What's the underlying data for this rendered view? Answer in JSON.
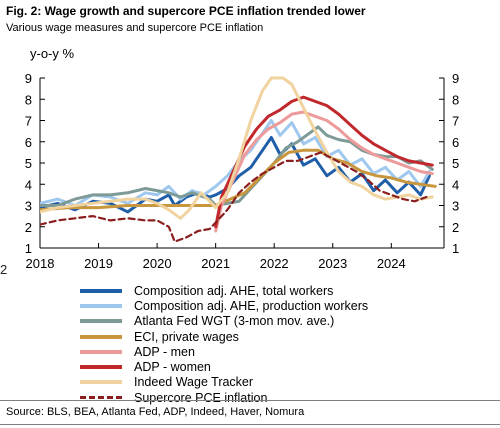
{
  "header": {
    "title": "Fig. 2: Wage growth and supercore PCE inflation trended lower",
    "subtitle": "Various wage measures and supercore PCE inflation"
  },
  "stub_text": "2",
  "footer": {
    "source": "Source: BLS, BEA, Atlanta Fed, ADP, Indeed, Haver, Nomura"
  },
  "chart_data": {
    "type": "line",
    "title": "Fig. 2: Wage growth and supercore PCE inflation trended lower",
    "subtitle": "Various wage measures and supercore PCE inflation",
    "ylabel": "y-o-y %",
    "xlabel": "",
    "xlim": [
      2018.0,
      2024.9
    ],
    "ylim": [
      1,
      9
    ],
    "x_ticks": [
      "2018",
      "2019",
      "2020",
      "2021",
      "2022",
      "2023",
      "2024"
    ],
    "y_ticks": [
      "1",
      "2",
      "3",
      "4",
      "5",
      "6",
      "7",
      "8",
      "9"
    ],
    "grid": false,
    "legend_position": "bottom",
    "series": [
      {
        "name": "Composition adj. AHE, total workers",
        "color": "#1f5ea8",
        "dash": false,
        "points": [
          [
            2018.0,
            2.9
          ],
          [
            2018.3,
            3.1
          ],
          [
            2018.6,
            2.8
          ],
          [
            2018.9,
            3.2
          ],
          [
            2019.2,
            3.1
          ],
          [
            2019.5,
            2.7
          ],
          [
            2019.8,
            3.3
          ],
          [
            2020.0,
            3.2
          ],
          [
            2020.2,
            3.5
          ],
          [
            2020.3,
            3.0
          ],
          [
            2020.5,
            3.4
          ],
          [
            2020.7,
            3.6
          ],
          [
            2020.9,
            3.4
          ],
          [
            2021.0,
            3.5
          ],
          [
            2021.2,
            3.8
          ],
          [
            2021.4,
            4.4
          ],
          [
            2021.6,
            4.8
          ],
          [
            2021.8,
            5.6
          ],
          [
            2021.95,
            6.2
          ],
          [
            2022.1,
            5.4
          ],
          [
            2022.3,
            5.9
          ],
          [
            2022.5,
            4.9
          ],
          [
            2022.7,
            5.2
          ],
          [
            2022.9,
            4.4
          ],
          [
            2023.1,
            4.8
          ],
          [
            2023.3,
            4.1
          ],
          [
            2023.5,
            4.5
          ],
          [
            2023.7,
            3.7
          ],
          [
            2023.9,
            4.2
          ],
          [
            2024.1,
            3.6
          ],
          [
            2024.3,
            4.1
          ],
          [
            2024.5,
            3.5
          ],
          [
            2024.65,
            4.4
          ]
        ]
      },
      {
        "name": "Composition adj. AHE, production workers",
        "color": "#9fc8ee",
        "dash": false,
        "points": [
          [
            2018.0,
            3.1
          ],
          [
            2018.3,
            3.3
          ],
          [
            2018.6,
            3.0
          ],
          [
            2018.9,
            3.5
          ],
          [
            2019.2,
            3.4
          ],
          [
            2019.5,
            3.1
          ],
          [
            2019.8,
            3.6
          ],
          [
            2020.0,
            3.5
          ],
          [
            2020.2,
            3.9
          ],
          [
            2020.4,
            3.3
          ],
          [
            2020.6,
            3.7
          ],
          [
            2020.8,
            3.5
          ],
          [
            2021.0,
            3.9
          ],
          [
            2021.2,
            4.4
          ],
          [
            2021.4,
            5.1
          ],
          [
            2021.6,
            5.6
          ],
          [
            2021.8,
            6.4
          ],
          [
            2021.95,
            7.0
          ],
          [
            2022.1,
            6.3
          ],
          [
            2022.3,
            6.9
          ],
          [
            2022.5,
            5.9
          ],
          [
            2022.7,
            6.2
          ],
          [
            2022.9,
            5.3
          ],
          [
            2023.1,
            5.6
          ],
          [
            2023.3,
            4.9
          ],
          [
            2023.5,
            5.2
          ],
          [
            2023.7,
            4.5
          ],
          [
            2023.9,
            4.8
          ],
          [
            2024.1,
            4.2
          ],
          [
            2024.3,
            4.6
          ],
          [
            2024.5,
            3.9
          ],
          [
            2024.65,
            4.6
          ]
        ]
      },
      {
        "name": "Atlanta Fed WGT (3-mon mov. ave.)",
        "color": "#7d9a96",
        "dash": false,
        "points": [
          [
            2018.0,
            3.0
          ],
          [
            2018.3,
            3.0
          ],
          [
            2018.6,
            3.3
          ],
          [
            2018.9,
            3.5
          ],
          [
            2019.2,
            3.5
          ],
          [
            2019.5,
            3.6
          ],
          [
            2019.8,
            3.8
          ],
          [
            2020.0,
            3.7
          ],
          [
            2020.2,
            3.6
          ],
          [
            2020.4,
            3.4
          ],
          [
            2020.6,
            3.6
          ],
          [
            2020.9,
            3.3
          ],
          [
            2021.0,
            3.0
          ],
          [
            2021.2,
            3.1
          ],
          [
            2021.4,
            3.2
          ],
          [
            2021.6,
            3.8
          ],
          [
            2021.8,
            4.4
          ],
          [
            2022.0,
            5.0
          ],
          [
            2022.2,
            5.7
          ],
          [
            2022.4,
            6.0
          ],
          [
            2022.6,
            6.4
          ],
          [
            2022.75,
            6.7
          ],
          [
            2022.9,
            6.3
          ],
          [
            2023.1,
            6.1
          ],
          [
            2023.3,
            6.0
          ],
          [
            2023.5,
            5.6
          ],
          [
            2023.7,
            5.4
          ],
          [
            2023.9,
            5.3
          ],
          [
            2024.1,
            5.3
          ],
          [
            2024.3,
            5.0
          ],
          [
            2024.5,
            5.1
          ],
          [
            2024.7,
            4.7
          ]
        ]
      },
      {
        "name": "ECI, private wages",
        "color": "#c8963c",
        "dash": false,
        "points": [
          [
            2018.0,
            2.8
          ],
          [
            2018.5,
            2.9
          ],
          [
            2019.0,
            2.9
          ],
          [
            2019.5,
            3.0
          ],
          [
            2020.0,
            3.0
          ],
          [
            2020.5,
            3.0
          ],
          [
            2021.0,
            3.0
          ],
          [
            2021.25,
            3.3
          ],
          [
            2021.5,
            3.6
          ],
          [
            2021.75,
            4.3
          ],
          [
            2022.0,
            5.0
          ],
          [
            2022.25,
            5.5
          ],
          [
            2022.5,
            5.6
          ],
          [
            2022.75,
            5.6
          ],
          [
            2023.0,
            5.2
          ],
          [
            2023.25,
            5.0
          ],
          [
            2023.5,
            4.6
          ],
          [
            2023.75,
            4.4
          ],
          [
            2024.0,
            4.3
          ],
          [
            2024.25,
            4.1
          ],
          [
            2024.5,
            4.0
          ],
          [
            2024.75,
            3.9
          ]
        ]
      },
      {
        "name": "ADP - men",
        "color": "#ec9a9a",
        "dash": false,
        "points": [
          [
            2021.0,
            1.8
          ],
          [
            2021.1,
            3.0
          ],
          [
            2021.3,
            4.2
          ],
          [
            2021.5,
            5.4
          ],
          [
            2021.7,
            6.1
          ],
          [
            2021.9,
            6.6
          ],
          [
            2022.1,
            6.9
          ],
          [
            2022.3,
            7.3
          ],
          [
            2022.5,
            7.4
          ],
          [
            2022.7,
            7.2
          ],
          [
            2022.9,
            7.0
          ],
          [
            2023.1,
            6.6
          ],
          [
            2023.3,
            6.1
          ],
          [
            2023.5,
            5.7
          ],
          [
            2023.7,
            5.4
          ],
          [
            2023.9,
            5.2
          ],
          [
            2024.1,
            5.0
          ],
          [
            2024.3,
            4.8
          ],
          [
            2024.5,
            4.6
          ],
          [
            2024.7,
            4.5
          ]
        ]
      },
      {
        "name": "ADP - women",
        "color": "#c0282c",
        "dash": false,
        "points": [
          [
            2021.0,
            2.0
          ],
          [
            2021.1,
            3.4
          ],
          [
            2021.3,
            4.6
          ],
          [
            2021.5,
            5.8
          ],
          [
            2021.7,
            6.6
          ],
          [
            2021.9,
            7.2
          ],
          [
            2022.1,
            7.5
          ],
          [
            2022.3,
            7.9
          ],
          [
            2022.5,
            8.1
          ],
          [
            2022.7,
            7.9
          ],
          [
            2022.9,
            7.7
          ],
          [
            2023.1,
            7.3
          ],
          [
            2023.3,
            6.8
          ],
          [
            2023.5,
            6.3
          ],
          [
            2023.7,
            5.9
          ],
          [
            2023.9,
            5.6
          ],
          [
            2024.1,
            5.3
          ],
          [
            2024.3,
            5.1
          ],
          [
            2024.5,
            5.0
          ],
          [
            2024.7,
            4.9
          ]
        ]
      },
      {
        "name": "Indeed Wage Tracker",
        "color": "#f1d39f",
        "dash": false,
        "points": [
          [
            2018.0,
            2.7
          ],
          [
            2018.3,
            2.9
          ],
          [
            2018.6,
            3.0
          ],
          [
            2018.9,
            3.1
          ],
          [
            2019.2,
            3.2
          ],
          [
            2019.5,
            3.3
          ],
          [
            2019.8,
            3.3
          ],
          [
            2020.0,
            3.1
          ],
          [
            2020.2,
            2.8
          ],
          [
            2020.4,
            2.4
          ],
          [
            2020.55,
            2.8
          ],
          [
            2020.75,
            3.6
          ],
          [
            2020.9,
            3.2
          ],
          [
            2021.0,
            2.9
          ],
          [
            2021.2,
            3.6
          ],
          [
            2021.4,
            5.2
          ],
          [
            2021.6,
            7.0
          ],
          [
            2021.8,
            8.4
          ],
          [
            2021.95,
            9.0
          ],
          [
            2022.15,
            9.0
          ],
          [
            2022.3,
            8.7
          ],
          [
            2022.5,
            7.6
          ],
          [
            2022.7,
            6.5
          ],
          [
            2022.9,
            5.5
          ],
          [
            2023.1,
            4.6
          ],
          [
            2023.3,
            4.1
          ],
          [
            2023.5,
            3.9
          ],
          [
            2023.7,
            3.5
          ],
          [
            2023.9,
            3.3
          ],
          [
            2024.1,
            3.4
          ],
          [
            2024.3,
            3.5
          ],
          [
            2024.5,
            3.3
          ],
          [
            2024.7,
            3.4
          ]
        ]
      },
      {
        "name": "Supercore PCE inflation",
        "color": "#8b1e1e",
        "dash": true,
        "points": [
          [
            2018.0,
            2.1
          ],
          [
            2018.3,
            2.3
          ],
          [
            2018.6,
            2.4
          ],
          [
            2018.9,
            2.5
          ],
          [
            2019.2,
            2.3
          ],
          [
            2019.5,
            2.4
          ],
          [
            2019.8,
            2.3
          ],
          [
            2020.0,
            2.3
          ],
          [
            2020.2,
            2.0
          ],
          [
            2020.3,
            1.3
          ],
          [
            2020.5,
            1.5
          ],
          [
            2020.7,
            1.8
          ],
          [
            2020.9,
            1.9
          ],
          [
            2021.0,
            2.2
          ],
          [
            2021.2,
            2.8
          ],
          [
            2021.4,
            3.6
          ],
          [
            2021.6,
            4.1
          ],
          [
            2021.8,
            4.5
          ],
          [
            2022.0,
            4.8
          ],
          [
            2022.2,
            5.1
          ],
          [
            2022.4,
            5.1
          ],
          [
            2022.6,
            5.3
          ],
          [
            2022.8,
            5.5
          ],
          [
            2023.0,
            5.2
          ],
          [
            2023.2,
            4.9
          ],
          [
            2023.4,
            4.6
          ],
          [
            2023.6,
            4.2
          ],
          [
            2023.8,
            3.7
          ],
          [
            2024.0,
            3.5
          ],
          [
            2024.2,
            3.3
          ],
          [
            2024.4,
            3.2
          ],
          [
            2024.6,
            3.4
          ]
        ]
      }
    ]
  }
}
